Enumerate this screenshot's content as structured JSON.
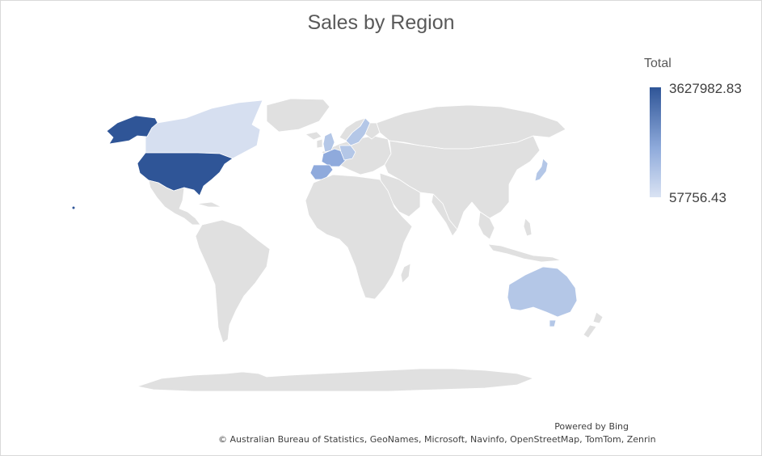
{
  "title": "Sales by Region",
  "legend": {
    "title": "Total",
    "max_label": "3627982.83",
    "min_label": "57756.43",
    "max_color": "#2f5597",
    "min_color": "#dae3f3"
  },
  "colors": {
    "land": "#e0e0e0",
    "border": "#ffffff",
    "high": "#2f5597",
    "mid": "#8faadc",
    "low": "#b4c7e7",
    "lowest": "#d6dff0"
  },
  "regions": [
    {
      "name": "United States",
      "level": "high"
    },
    {
      "name": "Canada",
      "level": "lowest"
    },
    {
      "name": "France",
      "level": "mid"
    },
    {
      "name": "Spain",
      "level": "mid"
    },
    {
      "name": "Germany",
      "level": "low"
    },
    {
      "name": "United Kingdom",
      "level": "low"
    },
    {
      "name": "Sweden",
      "level": "low"
    },
    {
      "name": "Japan",
      "level": "low"
    },
    {
      "name": "Australia",
      "level": "low"
    }
  ],
  "footer": {
    "powered_by": "Powered by Bing",
    "attribution": "© Australian Bureau of Statistics, GeoNames, Microsoft, Navinfo, OpenStreetMap, TomTom, Zenrin"
  }
}
